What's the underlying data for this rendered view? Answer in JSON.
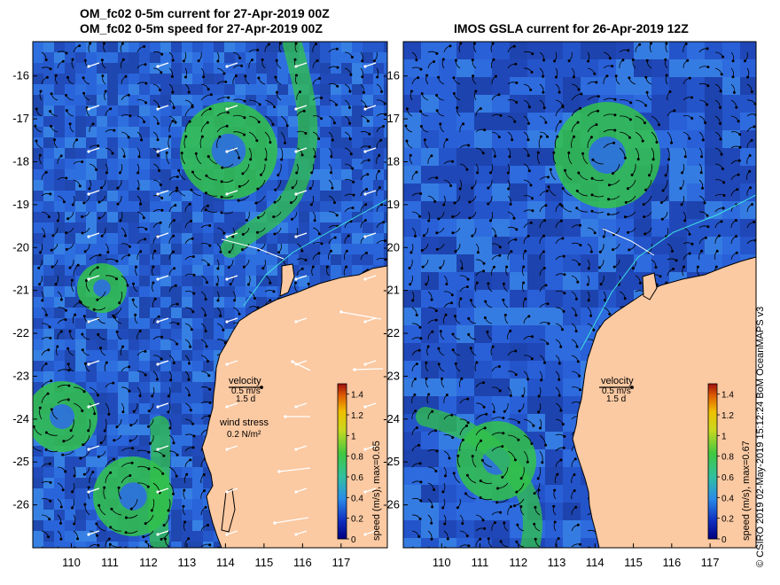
{
  "titles": {
    "left_line1": "OM_fc02 0-5m current for 27-Apr-2019 00Z",
    "left_line2": "OM_fc02 0-5m speed for 27-Apr-2019 00Z",
    "right_line1": "IMOS GSLA current for 26-Apr-2019 12Z"
  },
  "axes": {
    "lon_ticks": [
      "110",
      "111",
      "112",
      "113",
      "114",
      "115",
      "116",
      "117"
    ],
    "lat_ticks": [
      "-16",
      "-17",
      "-18",
      "-19",
      "-20",
      "-21",
      "-22",
      "-23",
      "-24",
      "-25",
      "-26"
    ],
    "lon_range": [
      109.0,
      118.2
    ],
    "lat_range": [
      -15.2,
      -27.0
    ]
  },
  "left_panel": {
    "velocity_label": "velocity",
    "velocity_scale": "0.5 m/s",
    "velocity_days": "1.5 d",
    "wind_label": "wind stress",
    "wind_scale": "0.2 N/m²",
    "colorbar_title": "speed (m/s), max=0.65"
  },
  "right_panel": {
    "velocity_label": "velocity",
    "velocity_scale": "0.5 m/s",
    "velocity_days": "1.5 d",
    "colorbar_title": "speed (m/s), max=0.67"
  },
  "colorbar_ticks": [
    "1.4",
    "1.2",
    "1",
    "0.8",
    "0.6",
    "0.4",
    "0.2",
    "0"
  ],
  "credit": "© CSIRO 2019   02-May-2019 15:12:24 BoM OceanMAPS v3",
  "colors": {
    "ocean_dark": "#1d3fae",
    "ocean_mid": "#2f6fe0",
    "ocean_light": "#3da0e8",
    "current_green": "#32c24a",
    "land": "#fbc9a2",
    "coast": "#000000"
  }
}
